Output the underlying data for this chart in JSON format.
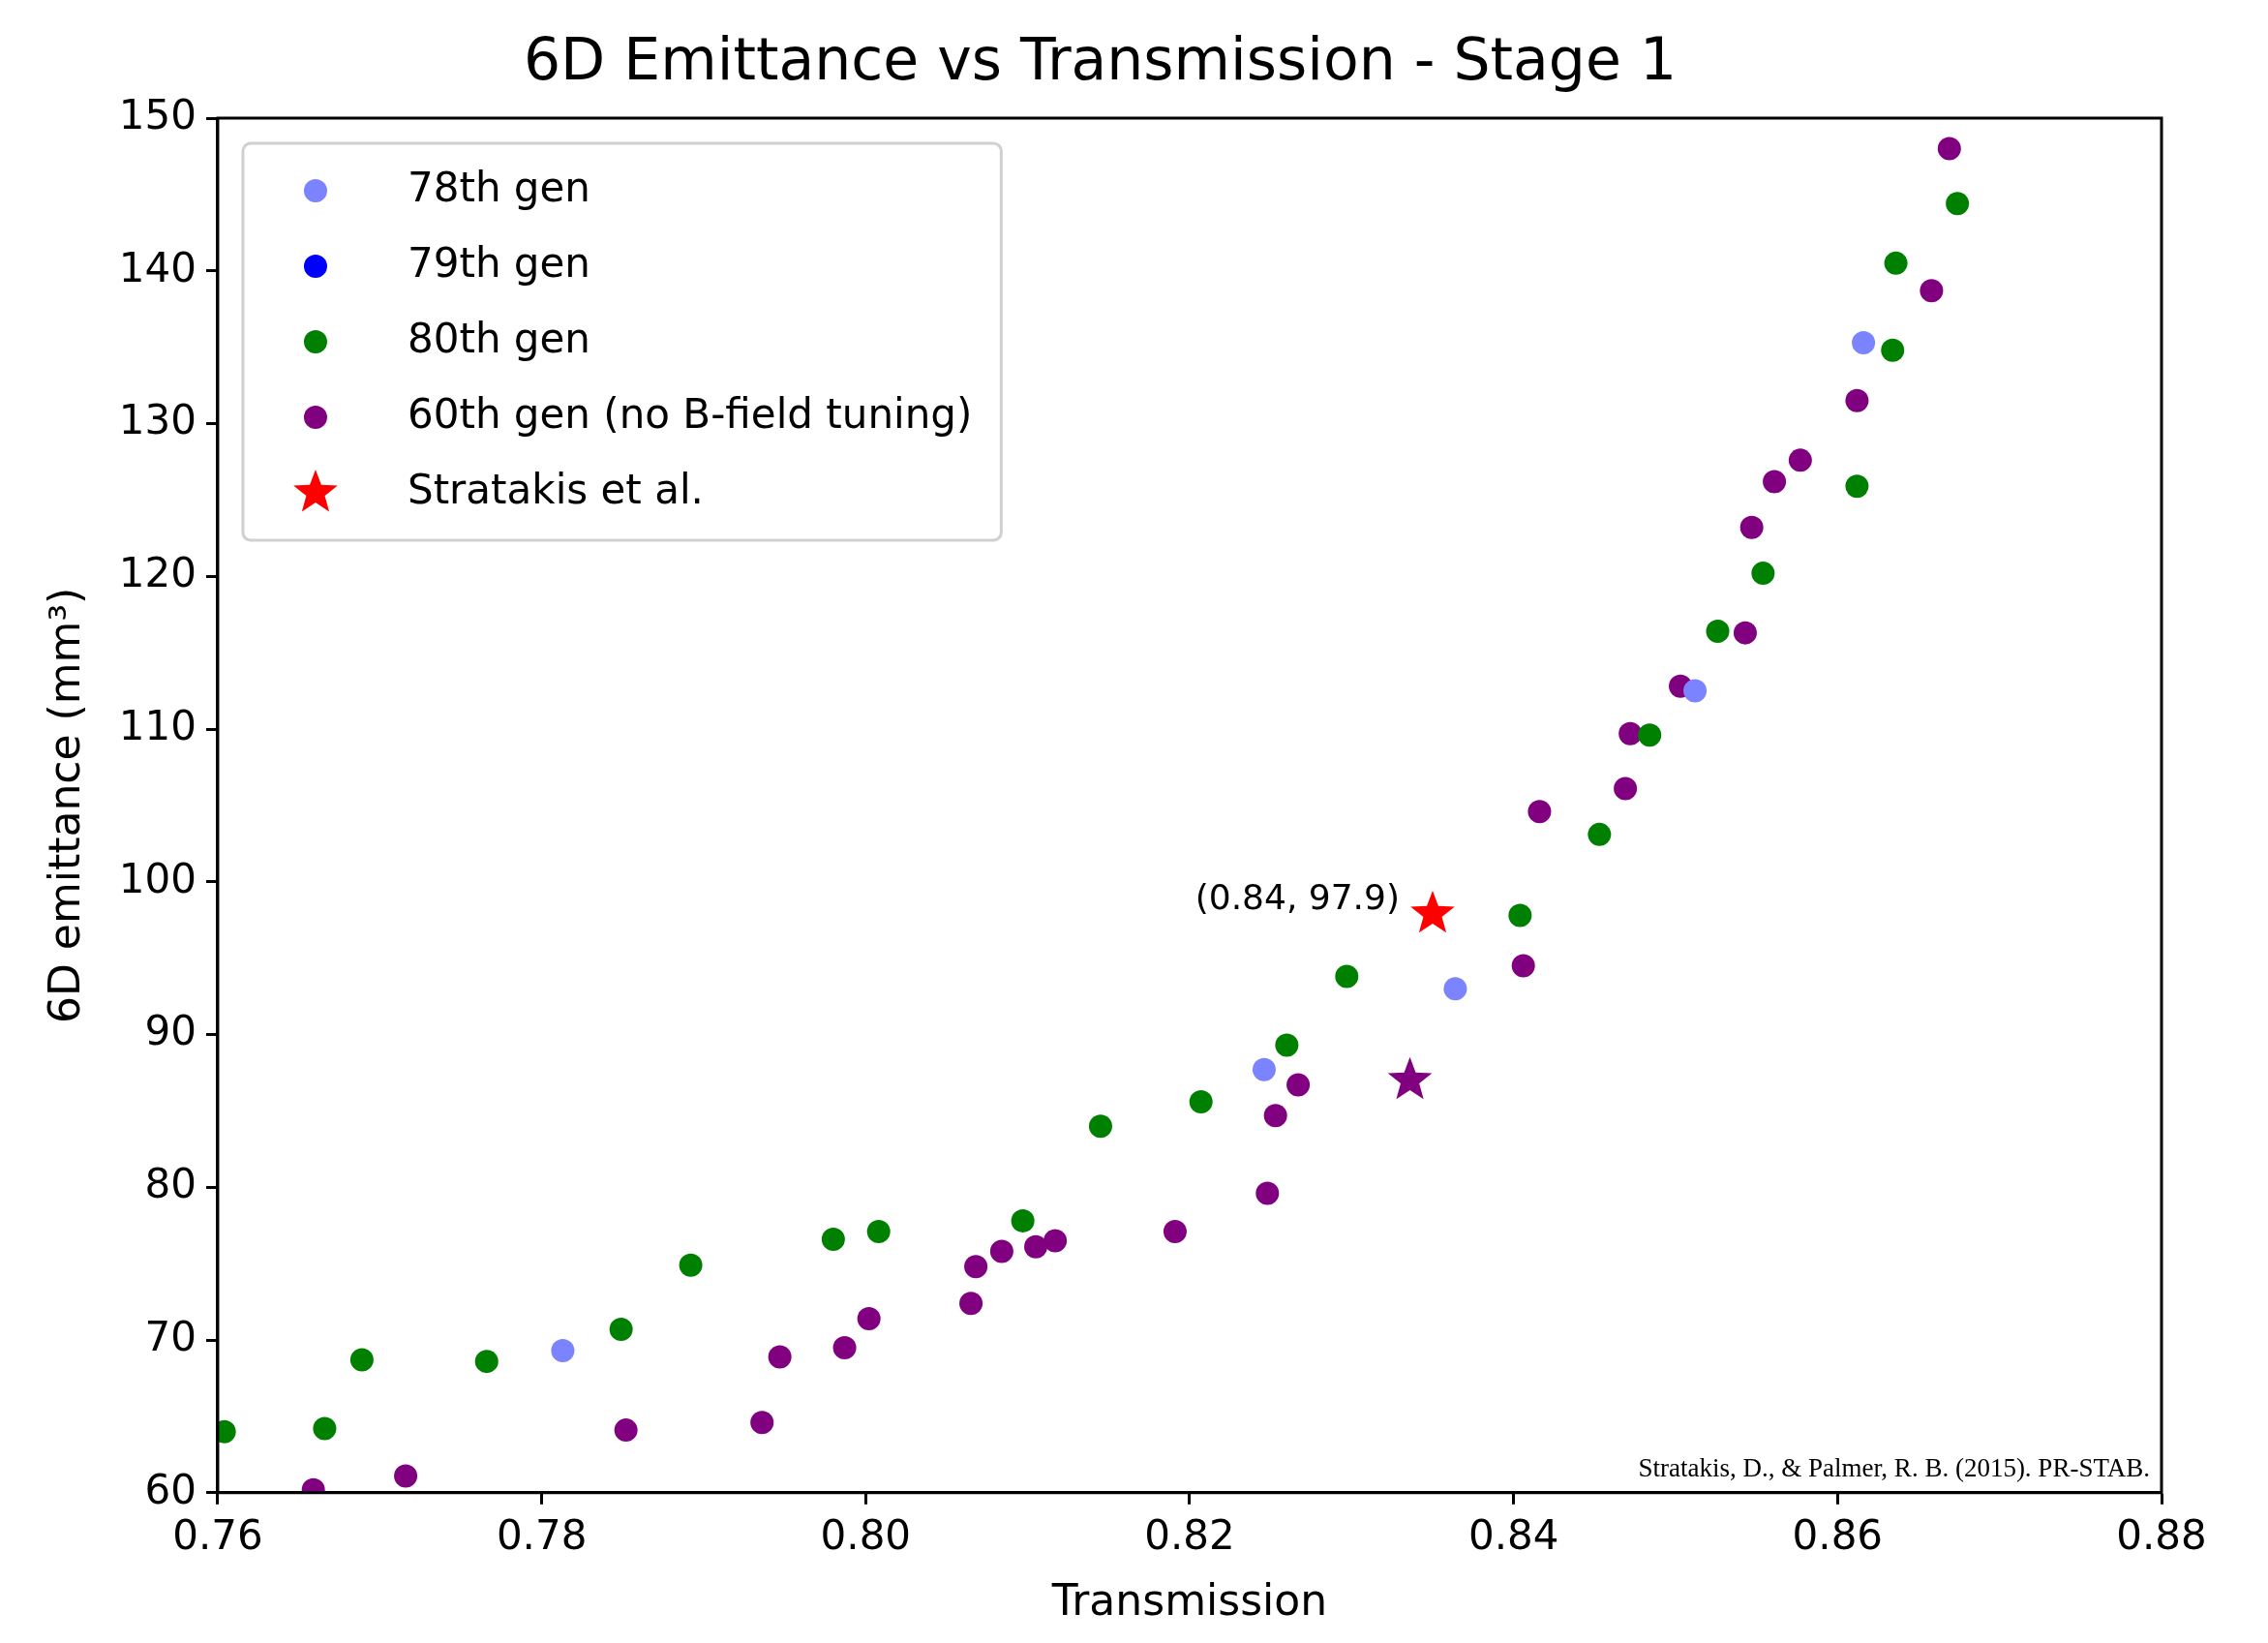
{
  "chart_data": {
    "type": "scatter",
    "title": "6D Emittance vs Transmission - Stage 1",
    "xlabel": "Transmission",
    "ylabel": "6D emittance (mm³)",
    "xlim": [
      0.76,
      0.88
    ],
    "xticks": [
      0.76,
      0.78,
      {
        "value": 0.8,
        "label": "0.80"
      },
      0.82,
      0.84,
      0.86,
      0.88
    ],
    "ylim": [
      60,
      150
    ],
    "yticks": [
      60,
      70,
      80,
      90,
      100,
      110,
      120,
      130,
      140,
      150
    ],
    "grid": false,
    "legend": "top left",
    "marker": "circle",
    "series": [
      {
        "name": "78th gen",
        "color": "#7b83ff",
        "x": [
          0.7813,
          0.8246,
          0.8364,
          0.8512,
          0.8616
        ],
        "values": [
          69.3,
          87.7,
          93.0,
          112.5,
          135.3
        ]
      },
      {
        "name": "79th gen",
        "color": "#0000ff"
      },
      {
        "name": "80th gen",
        "color": "#008000",
        "x": [
          0.7604,
          0.7666,
          0.7689,
          0.7766,
          0.7849,
          0.7892,
          0.798,
          0.8008,
          0.8097,
          0.8145,
          0.8207,
          0.826,
          0.8297,
          0.8404,
          0.8453,
          0.8484,
          0.8526,
          0.8554,
          0.8612,
          0.8634,
          0.8636,
          0.8674
        ],
        "values": [
          64.0,
          64.2,
          68.7,
          68.6,
          70.7,
          74.9,
          76.6,
          77.1,
          77.8,
          84.0,
          85.6,
          89.3,
          93.8,
          97.8,
          103.1,
          109.6,
          116.4,
          120.2,
          125.9,
          134.8,
          140.5,
          144.4
        ]
      },
      {
        "name": "60th gen (no B-field tuning)",
        "color": "#800080",
        "x": [
          0.7659,
          0.7716,
          0.7852,
          0.7936,
          0.7947,
          0.7987,
          0.8002,
          0.8065,
          0.8068,
          0.8084,
          0.8105,
          0.8117,
          0.8191,
          0.8248,
          0.8253,
          0.8267,
          0.8406,
          0.8416,
          0.8469,
          0.8472,
          0.8503,
          0.8543,
          0.8547,
          0.8561,
          0.8577,
          0.8612,
          0.8658,
          0.8669
        ],
        "values": [
          60.2,
          61.1,
          64.1,
          64.6,
          68.9,
          69.5,
          71.4,
          72.4,
          74.8,
          75.8,
          76.1,
          76.5,
          77.1,
          79.6,
          84.7,
          86.7,
          94.5,
          104.6,
          106.1,
          109.7,
          112.8,
          116.3,
          123.2,
          126.2,
          127.6,
          131.5,
          138.7,
          148.0
        ]
      },
      {
        "name": "Stratakis et al.",
        "color": "#ff0000",
        "marker": "star",
        "x": [
          0.835
        ],
        "values": [
          97.9
        ]
      },
      {
        "color": "#800080",
        "marker": "star",
        "x": [
          0.8336
        ],
        "values": [
          87.0
        ]
      }
    ],
    "annotations": [
      {
        "text": "(0.84, 97.9)",
        "x": 0.835,
        "y": 97.9
      },
      "Stratakis, D., & Palmer, R. B. (2015). PR-STAB."
    ]
  }
}
